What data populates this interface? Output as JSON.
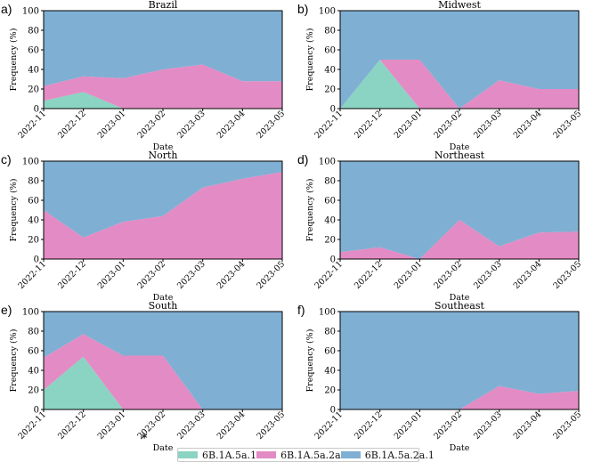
{
  "chart_data": [
    {
      "type": "area",
      "panel_label": "a)",
      "title": "Brazil",
      "xlabel": "Date",
      "ylabel": "Frequency (%)",
      "ylim": [
        0,
        100
      ],
      "yticks": [
        "0",
        "20",
        "40",
        "60",
        "80",
        "100"
      ],
      "categories": [
        "2022-11",
        "2022-12",
        "2023-01",
        "2023-02",
        "2023-03",
        "2023-04",
        "2023-05"
      ],
      "series": [
        {
          "name": "6B.1A.5a.1",
          "values": [
            8,
            17,
            0,
            0,
            0,
            0,
            0
          ]
        },
        {
          "name": "6B.1A.5a.2a",
          "values": [
            15,
            16,
            31,
            40,
            45,
            28,
            28
          ]
        },
        {
          "name": "6B.1A.5a.2a.1",
          "values": [
            77,
            67,
            69,
            60,
            55,
            72,
            72
          ]
        }
      ]
    },
    {
      "type": "area",
      "panel_label": "b)",
      "title": "Midwest",
      "xlabel": "Date",
      "ylabel": "Frequency (%)",
      "ylim": [
        0,
        100
      ],
      "yticks": [
        "0",
        "20",
        "40",
        "60",
        "80",
        "100"
      ],
      "categories": [
        "2022-11",
        "2022-12",
        "2023-01",
        "2023-02",
        "2023-03",
        "2023-04",
        "2023-05"
      ],
      "series": [
        {
          "name": "6B.1A.5a.1",
          "values": [
            0,
            50,
            0,
            0,
            0,
            0,
            0
          ]
        },
        {
          "name": "6B.1A.5a.2a",
          "values": [
            0,
            0,
            50,
            0,
            29,
            20,
            20
          ]
        },
        {
          "name": "6B.1A.5a.2a.1",
          "values": [
            100,
            50,
            50,
            100,
            71,
            80,
            80
          ]
        }
      ]
    },
    {
      "type": "area",
      "panel_label": "c)",
      "title": "North",
      "xlabel": "Date",
      "ylabel": "Frequency (%)",
      "ylim": [
        0,
        100
      ],
      "yticks": [
        "0",
        "20",
        "40",
        "60",
        "80",
        "100"
      ],
      "categories": [
        "2022-11",
        "2022-12",
        "2023-01",
        "2023-02",
        "2023-03",
        "2023-04",
        "2023-05"
      ],
      "series": [
        {
          "name": "6B.1A.5a.1",
          "values": [
            0,
            0,
            0,
            0,
            0,
            0,
            0
          ]
        },
        {
          "name": "6B.1A.5a.2a",
          "values": [
            50,
            22,
            38,
            44,
            73,
            82,
            89
          ]
        },
        {
          "name": "6B.1A.5a.2a.1",
          "values": [
            50,
            78,
            62,
            56,
            27,
            18,
            11
          ]
        }
      ]
    },
    {
      "type": "area",
      "panel_label": "d)",
      "title": "Northeast",
      "xlabel": "Date",
      "ylabel": "Frequency (%)",
      "ylim": [
        0,
        100
      ],
      "yticks": [
        "0",
        "20",
        "40",
        "60",
        "80",
        "100"
      ],
      "categories": [
        "2022-11",
        "2022-12",
        "2023-01",
        "2023-02",
        "2023-03",
        "2023-04",
        "2023-05"
      ],
      "series": [
        {
          "name": "6B.1A.5a.1",
          "values": [
            0,
            0,
            0,
            0,
            0,
            0,
            0
          ]
        },
        {
          "name": "6B.1A.5a.2a",
          "values": [
            7,
            12,
            0,
            40,
            13,
            27,
            28
          ]
        },
        {
          "name": "6B.1A.5a.2a.1",
          "values": [
            93,
            88,
            100,
            60,
            87,
            73,
            72
          ]
        }
      ]
    },
    {
      "type": "area",
      "panel_label": "e)",
      "title": "South",
      "xlabel": "Date",
      "ylabel": "Frequency (%)",
      "ylim": [
        0,
        100
      ],
      "yticks": [
        "0",
        "20",
        "40",
        "60",
        "80",
        "100"
      ],
      "categories": [
        "2022-11",
        "2022-12",
        "2023-01",
        "2023-02",
        "2023-03",
        "2023-04",
        "2023-05"
      ],
      "annotation": {
        "text": "*",
        "category": "2023-02"
      },
      "series": [
        {
          "name": "6B.1A.5a.1",
          "values": [
            20,
            54,
            0,
            0,
            0,
            0,
            0
          ]
        },
        {
          "name": "6B.1A.5a.2a",
          "values": [
            33,
            23,
            55,
            55,
            0,
            0,
            0
          ]
        },
        {
          "name": "6B.1A.5a.2a.1",
          "values": [
            47,
            23,
            45,
            45,
            100,
            100,
            100
          ]
        }
      ]
    },
    {
      "type": "area",
      "panel_label": "f)",
      "title": "Southeast",
      "xlabel": "Date",
      "ylabel": "Frequency (%)",
      "ylim": [
        0,
        100
      ],
      "yticks": [
        "0",
        "20",
        "40",
        "60",
        "80",
        "100"
      ],
      "categories": [
        "2022-11",
        "2022-12",
        "2023-01",
        "2023-02",
        "2023-03",
        "2023-04",
        "2023-05"
      ],
      "series": [
        {
          "name": "6B.1A.5a.1",
          "values": [
            0,
            0,
            0,
            0,
            0,
            0,
            0
          ]
        },
        {
          "name": "6B.1A.5a.2a",
          "values": [
            0,
            0,
            0,
            0,
            24,
            16,
            19
          ]
        },
        {
          "name": "6B.1A.5a.2a.1",
          "values": [
            100,
            100,
            100,
            100,
            76,
            84,
            81
          ]
        }
      ]
    }
  ],
  "legend": [
    {
      "label": "6B.1A.5a.1",
      "color": "#8bd3c2"
    },
    {
      "label": "6B.1A.5a.2a",
      "color": "#e38bc4"
    },
    {
      "label": "6B.1A.5a.2a.1",
      "color": "#7fafd3"
    }
  ]
}
